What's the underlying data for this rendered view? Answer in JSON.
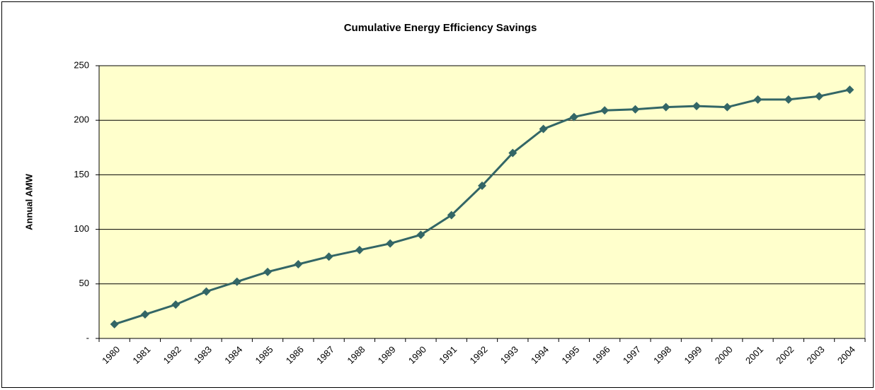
{
  "chart_data": {
    "type": "line",
    "title": "Cumulative Energy Efficiency Savings",
    "y_label": "Annual AMW",
    "categories": [
      "1980",
      "1981",
      "1982",
      "1983",
      "1984",
      "1985",
      "1986",
      "1987",
      "1988",
      "1989",
      "1990",
      "1991",
      "1992",
      "1993",
      "1994",
      "1995",
      "1996",
      "1997",
      "1998",
      "1999",
      "2000",
      "2001",
      "2002",
      "2003",
      "2004"
    ],
    "values": [
      13,
      22,
      31,
      43,
      52,
      61,
      68,
      75,
      81,
      87,
      95,
      113,
      140,
      170,
      192,
      203,
      209,
      210,
      212,
      213,
      212,
      219,
      219,
      222,
      228
    ],
    "color": "#336666",
    "plot_background": "#ffffcc",
    "ylim": [
      0,
      250
    ],
    "yticks": [
      {
        "value": 0,
        "label": "-"
      },
      50,
      100,
      150,
      200,
      250
    ],
    "grid": true
  }
}
